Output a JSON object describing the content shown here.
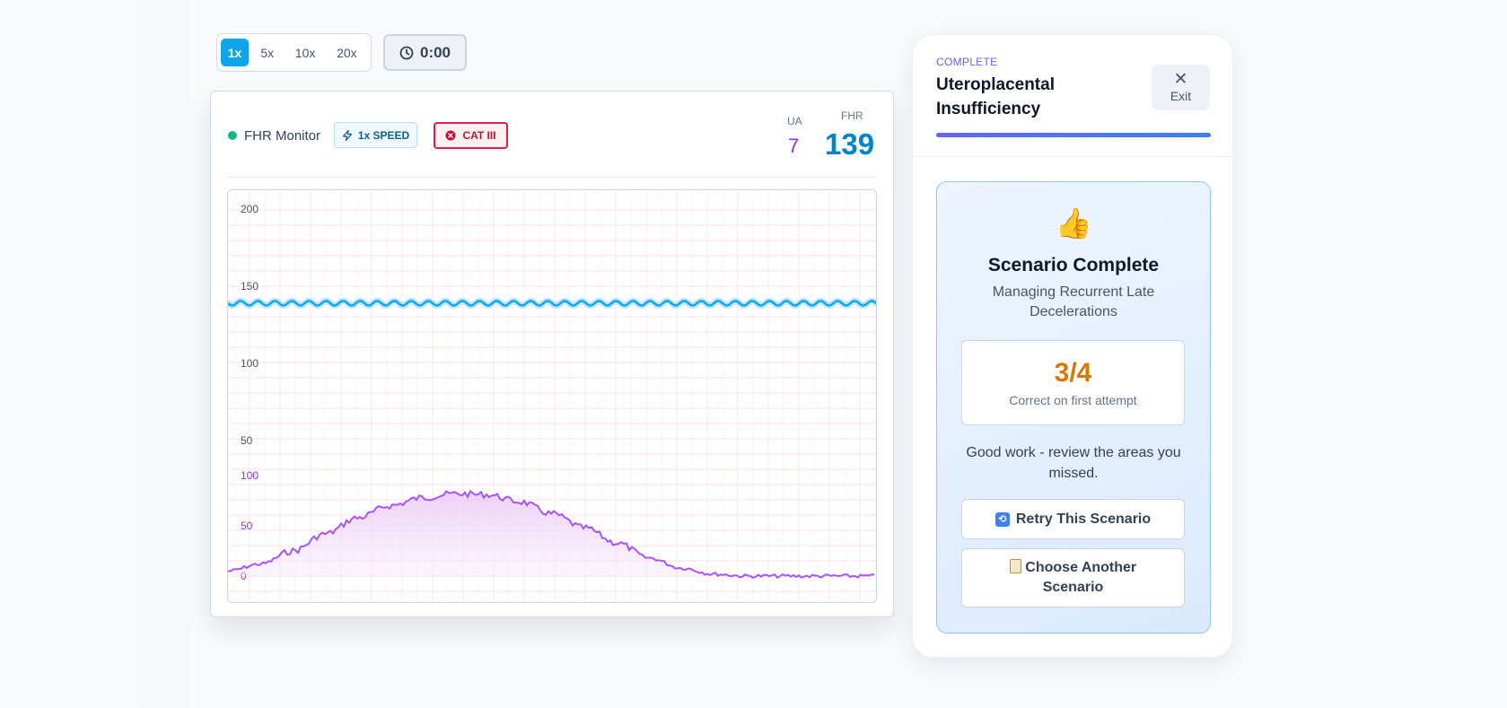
{
  "speed_controls": {
    "options": [
      "1x",
      "5x",
      "10x",
      "20x"
    ],
    "active": "1x"
  },
  "timer": {
    "value": "0:00",
    "icon": "clock-icon"
  },
  "monitor": {
    "title": "FHR Monitor",
    "status_color": "#10b981",
    "speed_badge": "1x SPEED",
    "category_badge": "CAT III",
    "ua": {
      "label": "UA",
      "value": "7"
    },
    "fhr": {
      "label": "FHR",
      "value": "139"
    }
  },
  "panel": {
    "status": "COMPLETE",
    "title": "Uteroplacental Insufficiency",
    "exit_label": "Exit",
    "progress": 1.0,
    "result": {
      "emoji": "👍",
      "title": "Scenario Complete",
      "subtitle": "Managing Recurrent Late Decelerations",
      "score": "3/4",
      "score_label": "Correct on first attempt",
      "message": "Good work - review the areas you missed.",
      "retry_label": "Retry This Scenario",
      "another_label": "Choose Another Scenario"
    }
  },
  "colors": {
    "accent": "#0ea5e9",
    "fhr_trace": "#0ea5e9",
    "ua_trace": "#a855f7",
    "cat_badge": "#e11d48",
    "score": "#d97706"
  },
  "chart_data": {
    "type": "line",
    "fhr": {
      "ticks": [
        "200",
        "150",
        "100",
        "50"
      ],
      "range": [
        50,
        200
      ],
      "baseline": 139
    },
    "ua": {
      "ticks": [
        "100",
        "50",
        "0"
      ],
      "range": [
        0,
        100
      ],
      "x": [
        0,
        5,
        10,
        15,
        20,
        25,
        30,
        35,
        40,
        45,
        50,
        55,
        60,
        65,
        70,
        75,
        80,
        85,
        90,
        95,
        100
      ],
      "values": [
        5,
        12,
        25,
        42,
        58,
        70,
        78,
        82,
        81,
        74,
        62,
        48,
        33,
        18,
        8,
        2,
        0,
        0,
        0,
        0,
        0
      ]
    }
  }
}
